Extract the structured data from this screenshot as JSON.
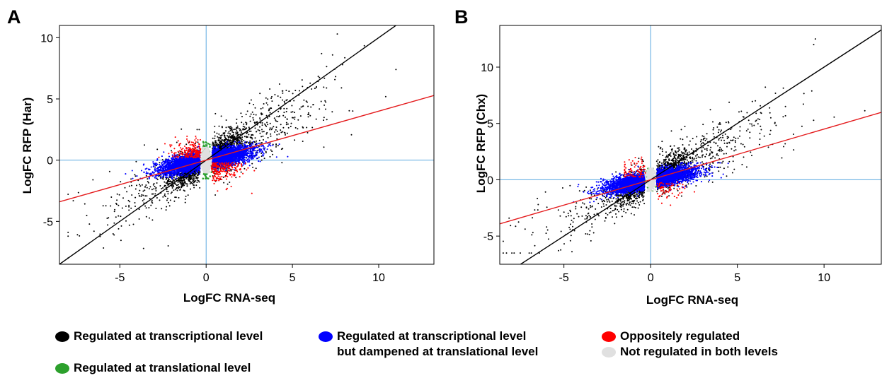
{
  "figure": {
    "legend": [
      {
        "label": "Regulated at transcriptional level",
        "line2": "",
        "color": "#000000"
      },
      {
        "label": "Regulated at transcriptional level",
        "line2": "but dampened at translational level",
        "color": "#0000ff"
      },
      {
        "label": "Oppositely regulated",
        "line2": "",
        "color": "#ff0000"
      },
      {
        "label": "Not regulated in both levels",
        "line2": "",
        "color": "#e0e0e0"
      },
      {
        "label": "Regulated at translational level",
        "line2": "",
        "color": "#2ca02c"
      }
    ]
  },
  "chart_data": [
    {
      "type": "scatter",
      "panel_label": "A",
      "title": "",
      "xlabel": "LogFC RNA-seq",
      "ylabel": "LogFC RFP (Har)",
      "xlim": [
        -8.5,
        13.2
      ],
      "ylim": [
        -8.5,
        11
      ],
      "xticks": [
        -5,
        0,
        5,
        10
      ],
      "yticks": [
        -5,
        0,
        5,
        10
      ],
      "grid": false,
      "reference_lines": [
        {
          "type": "vertical",
          "x": 0,
          "color": "#5aa8e0"
        },
        {
          "type": "horizontal",
          "y": 0,
          "color": "#5aa8e0"
        }
      ],
      "fit_lines": [
        {
          "name": "",
          "slope": 1.0,
          "intercept": 0,
          "color": "#000000"
        },
        {
          "name": "",
          "slope": 0.4,
          "intercept": 0,
          "color": "#e41a1c"
        }
      ],
      "series": [
        {
          "category": "Regulated at transcriptional level",
          "color": "#000000",
          "approx_points": 2200,
          "x_range": [
            -8,
            12.5
          ],
          "y_range": [
            -8,
            10.3
          ],
          "extreme_points": [
            [
              7.6,
              10.3
            ],
            [
              11.0,
              7.4
            ],
            [
              -2.2,
              -7.0
            ],
            [
              -6.5,
              -5.8
            ]
          ]
        },
        {
          "category": "Regulated at transcriptional level but dampened at translational level",
          "color": "#0000ff",
          "approx_points": 4500,
          "x_range": [
            -5.5,
            5
          ],
          "y_range": [
            -1.5,
            1.5
          ]
        },
        {
          "category": "Oppositely regulated",
          "color": "#ff0000",
          "approx_points": 400,
          "x_range": [
            -3,
            3
          ],
          "y_range": [
            -4.3,
            3
          ]
        },
        {
          "category": "Regulated at translational level",
          "color": "#2ca02c",
          "approx_points": 120,
          "x_range": [
            -0.3,
            0.3
          ],
          "y_range": [
            -1.5,
            1.5
          ]
        },
        {
          "category": "Not regulated in both levels",
          "color": "#e0e0e0",
          "approx_points": 600,
          "x_range": [
            -0.3,
            0.3
          ],
          "y_range": [
            -1,
            1
          ]
        }
      ]
    },
    {
      "type": "scatter",
      "panel_label": "B",
      "title": "",
      "xlabel": "LogFC RNA-seq",
      "ylabel": "LogFC RFP (Chx)",
      "xlim": [
        -8.7,
        13.3
      ],
      "ylim": [
        -7.5,
        13.7
      ],
      "xticks": [
        -5,
        0,
        5,
        10
      ],
      "yticks": [
        -5,
        0,
        5,
        10
      ],
      "grid": false,
      "reference_lines": [
        {
          "type": "vertical",
          "x": 0,
          "color": "#5aa8e0"
        },
        {
          "type": "horizontal",
          "y": 0,
          "color": "#5aa8e0"
        }
      ],
      "fit_lines": [
        {
          "name": "",
          "slope": 1.0,
          "intercept": 0,
          "color": "#000000"
        },
        {
          "name": "",
          "slope": 0.45,
          "intercept": 0,
          "color": "#e41a1c"
        }
      ],
      "series": [
        {
          "category": "Regulated at transcriptional level",
          "color": "#000000",
          "approx_points": 1800,
          "x_range": [
            -8.5,
            12.8
          ],
          "y_range": [
            -6.5,
            12.8
          ],
          "extreme_points": [
            [
              9.5,
              12.5
            ],
            [
              9.4,
              12.0
            ],
            [
              -7.0,
              -6.5
            ]
          ]
        },
        {
          "category": "Regulated at transcriptional level but dampened at translational level",
          "color": "#0000ff",
          "approx_points": 4200,
          "x_range": [
            -5.5,
            10
          ],
          "y_range": [
            -2,
            1.5
          ]
        },
        {
          "category": "Oppositely regulated",
          "color": "#ff0000",
          "approx_points": 150,
          "x_range": [
            -1.5,
            7
          ],
          "y_range": [
            -2.7,
            3
          ]
        },
        {
          "category": "Regulated at translational level",
          "color": "#2ca02c",
          "approx_points": 60,
          "x_range": [
            -0.3,
            0.3
          ],
          "y_range": [
            -1,
            1
          ]
        },
        {
          "category": "Not regulated in both levels",
          "color": "#e0e0e0",
          "approx_points": 400,
          "x_range": [
            -0.3,
            0.3
          ],
          "y_range": [
            -1,
            1
          ]
        }
      ]
    }
  ]
}
